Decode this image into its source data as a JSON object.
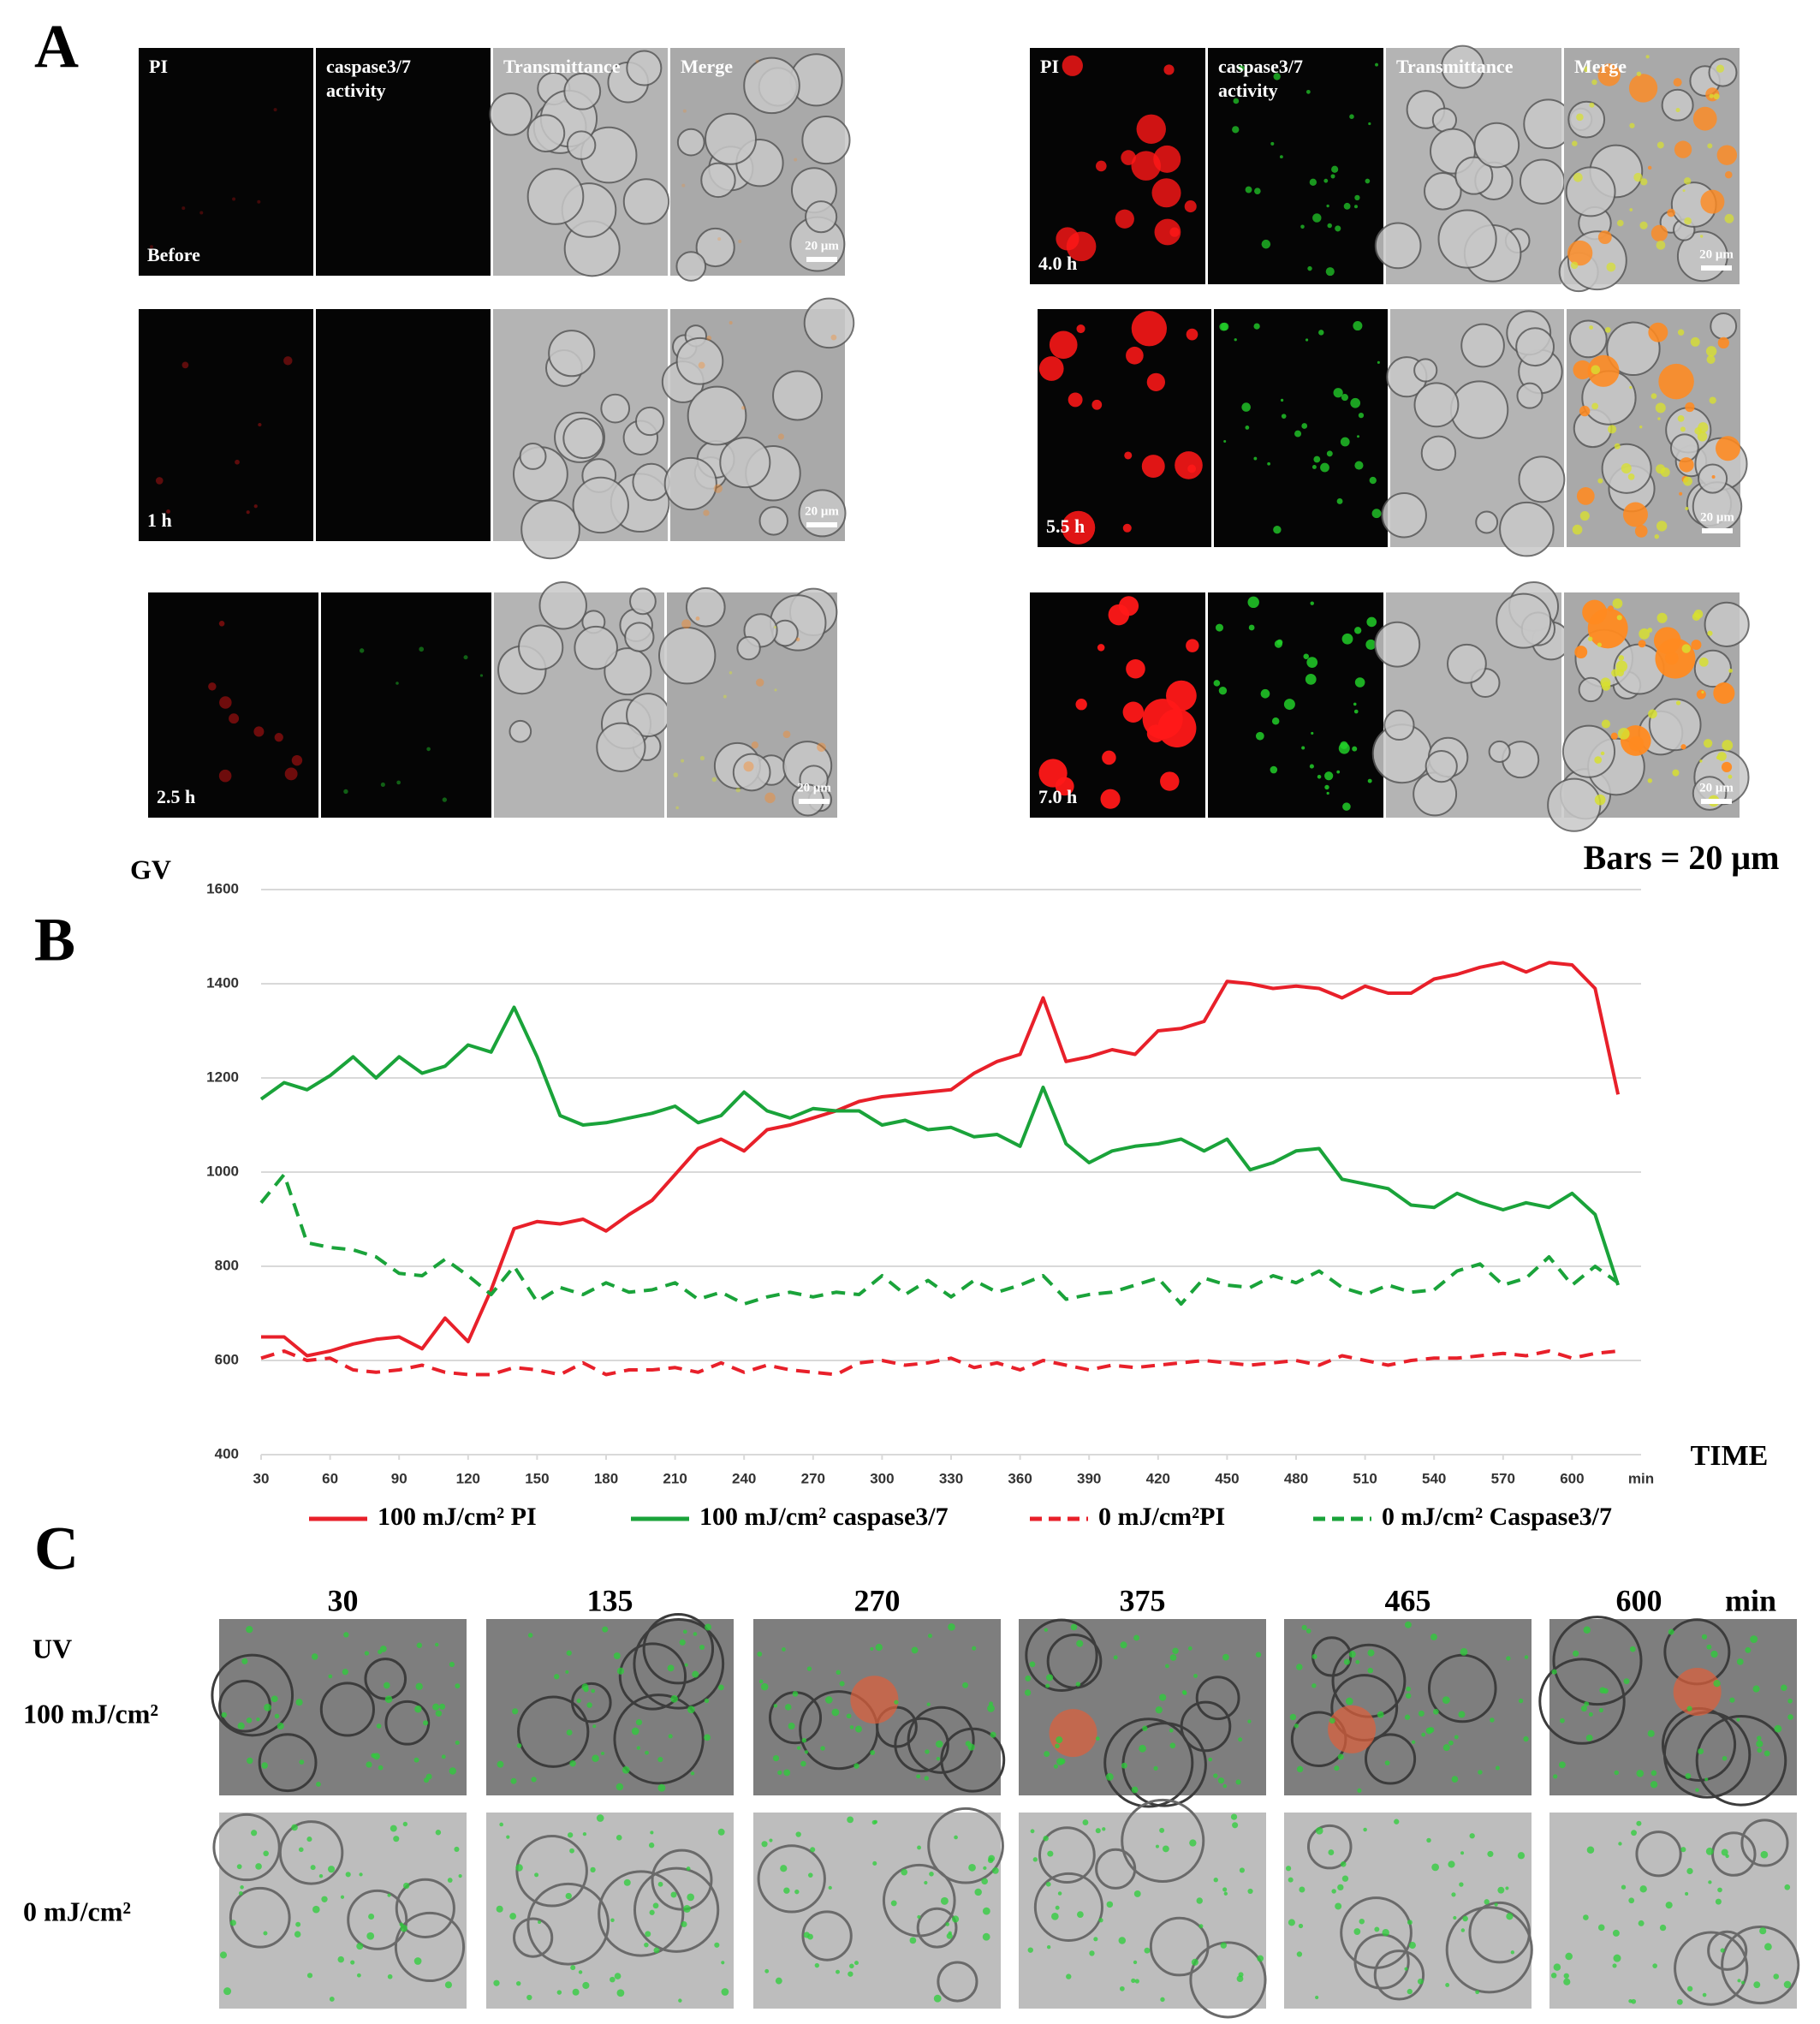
{
  "panel_a": {
    "label": "A",
    "channels": [
      [
        "PI"
      ],
      [
        "caspase3/7",
        "activity"
      ],
      [
        "Transmittance"
      ],
      [
        "Merge"
      ]
    ],
    "timepoints": [
      "Before",
      "1 h",
      "2.5 h",
      "4.0 h",
      "5.5 h",
      "7.0 h"
    ],
    "scale_bar_label": "20 μm",
    "bars_note": "Bars = 20 μm"
  },
  "chart_data": {
    "type": "line",
    "panel_label": "B",
    "y_label": "GV",
    "x_label": "TIME",
    "x_unit": "min",
    "x": [
      30,
      40,
      50,
      60,
      70,
      80,
      90,
      100,
      110,
      120,
      130,
      140,
      150,
      160,
      170,
      180,
      190,
      200,
      210,
      220,
      230,
      240,
      250,
      260,
      270,
      280,
      290,
      300,
      310,
      320,
      330,
      340,
      350,
      360,
      370,
      380,
      390,
      400,
      410,
      420,
      430,
      440,
      450,
      460,
      470,
      480,
      490,
      500,
      510,
      520,
      530,
      540,
      550,
      560,
      570,
      580,
      590,
      600,
      610,
      620
    ],
    "xlim": [
      30,
      630
    ],
    "xticks": [
      30,
      60,
      90,
      120,
      150,
      180,
      210,
      240,
      270,
      300,
      330,
      360,
      390,
      420,
      450,
      480,
      510,
      540,
      570,
      600
    ],
    "ylim": [
      400,
      1600
    ],
    "yticks": [
      400,
      600,
      800,
      1000,
      1200,
      1400,
      1600
    ],
    "grid": true,
    "series": [
      {
        "name": "100 mJ/cm² PI",
        "color": "#e8202a",
        "dashed": false,
        "values": [
          650,
          650,
          610,
          620,
          635,
          645,
          650,
          625,
          690,
          640,
          750,
          880,
          895,
          890,
          900,
          875,
          910,
          940,
          995,
          1050,
          1070,
          1045,
          1090,
          1100,
          1115,
          1130,
          1150,
          1160,
          1165,
          1170,
          1175,
          1210,
          1235,
          1250,
          1370,
          1235,
          1245,
          1260,
          1250,
          1300,
          1305,
          1320,
          1405,
          1400,
          1390,
          1395,
          1390,
          1370,
          1395,
          1380,
          1380,
          1410,
          1420,
          1435,
          1445,
          1425,
          1445,
          1440,
          1390,
          1165
        ]
      },
      {
        "name": "100 mJ/cm² caspase3/7",
        "color": "#1aa33a",
        "dashed": false,
        "values": [
          1155,
          1190,
          1175,
          1205,
          1245,
          1200,
          1245,
          1210,
          1225,
          1270,
          1255,
          1350,
          1245,
          1120,
          1100,
          1105,
          1115,
          1125,
          1140,
          1105,
          1120,
          1170,
          1130,
          1115,
          1135,
          1130,
          1130,
          1100,
          1110,
          1090,
          1095,
          1075,
          1080,
          1055,
          1180,
          1060,
          1020,
          1045,
          1055,
          1060,
          1070,
          1045,
          1070,
          1005,
          1020,
          1045,
          1050,
          985,
          975,
          965,
          930,
          925,
          955,
          935,
          920,
          935,
          925,
          955,
          910,
          760
        ]
      },
      {
        "name": "0 mJ/cm²PI",
        "color": "#e8202a",
        "dashed": true,
        "values": [
          605,
          620,
          600,
          605,
          580,
          575,
          580,
          590,
          575,
          570,
          570,
          585,
          580,
          570,
          595,
          570,
          580,
          580,
          585,
          575,
          595,
          575,
          590,
          580,
          575,
          570,
          595,
          600,
          590,
          595,
          605,
          585,
          595,
          580,
          600,
          590,
          580,
          590,
          585,
          590,
          595,
          600,
          595,
          590,
          595,
          600,
          590,
          610,
          600,
          590,
          600,
          605,
          605,
          610,
          615,
          610,
          620,
          605,
          615,
          620
        ]
      },
      {
        "name": "0 mJ/cm² Caspase3/7",
        "color": "#1aa33a",
        "dashed": true,
        "values": [
          935,
          995,
          850,
          840,
          835,
          820,
          785,
          780,
          815,
          780,
          740,
          800,
          725,
          755,
          740,
          765,
          745,
          750,
          765,
          730,
          745,
          720,
          735,
          745,
          735,
          745,
          740,
          780,
          740,
          770,
          735,
          770,
          745,
          760,
          780,
          730,
          740,
          745,
          760,
          775,
          720,
          775,
          760,
          755,
          780,
          765,
          790,
          755,
          740,
          760,
          745,
          750,
          790,
          805,
          760,
          775,
          820,
          760,
          800,
          765
        ]
      }
    ]
  },
  "panel_c": {
    "label": "C",
    "times": [
      "30",
      "135",
      "270",
      "375",
      "465",
      "600"
    ],
    "time_unit": "min",
    "rows": [
      {
        "label": [
          "UV",
          "100 mJ/cm²"
        ]
      },
      {
        "label": [
          "0 mJ/cm²"
        ]
      }
    ]
  }
}
